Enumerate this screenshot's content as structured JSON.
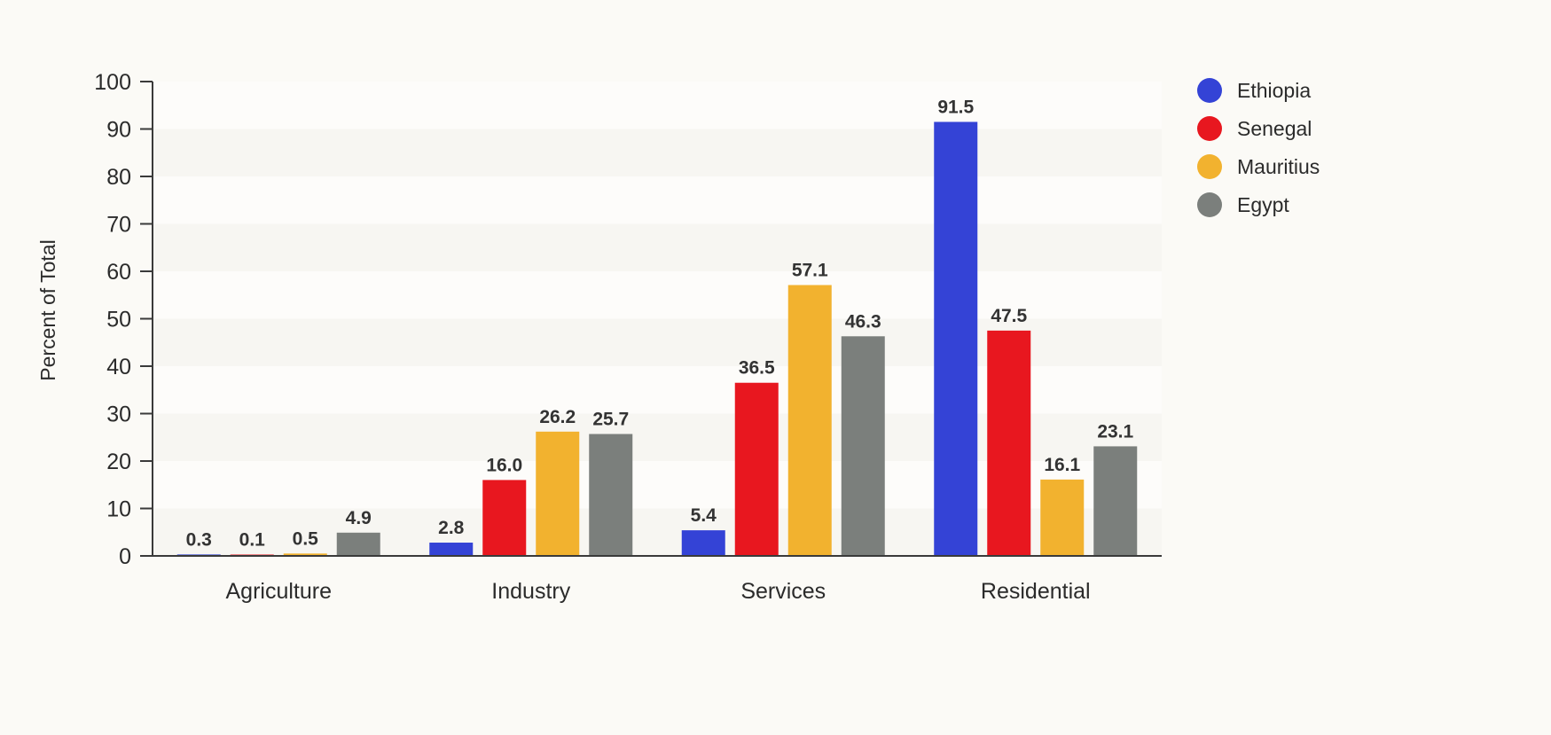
{
  "chart_data": {
    "type": "bar",
    "ylabel": "Percent of Total",
    "xlabel": "",
    "ylim": [
      0,
      100
    ],
    "yticks": [
      0,
      10,
      20,
      30,
      40,
      50,
      60,
      70,
      80,
      90,
      100
    ],
    "grid": "horizontal bands",
    "legend_position": "top-right",
    "categories": [
      "Agriculture",
      "Industry",
      "Services",
      "Residential"
    ],
    "series": [
      {
        "name": "Ethiopia",
        "color": "#3443d6",
        "values": [
          0.3,
          2.8,
          5.4,
          91.5
        ],
        "labels": [
          "0.3",
          "2.8",
          "5.4",
          "91.5"
        ]
      },
      {
        "name": "Senegal",
        "color": "#e8171f",
        "values": [
          0.1,
          16.0,
          36.5,
          47.5
        ],
        "labels": [
          "0.1",
          "16.0",
          "36.5",
          "47.5"
        ]
      },
      {
        "name": "Mauritius",
        "color": "#f2b22f",
        "values": [
          0.5,
          26.2,
          57.1,
          16.1
        ],
        "labels": [
          "0.5",
          "26.2",
          "57.1",
          "16.1"
        ]
      },
      {
        "name": "Egypt",
        "color": "#7b7f7c",
        "values": [
          4.9,
          25.7,
          46.3,
          23.1
        ],
        "labels": [
          "4.9",
          "25.7",
          "46.3",
          "23.1"
        ]
      }
    ]
  }
}
